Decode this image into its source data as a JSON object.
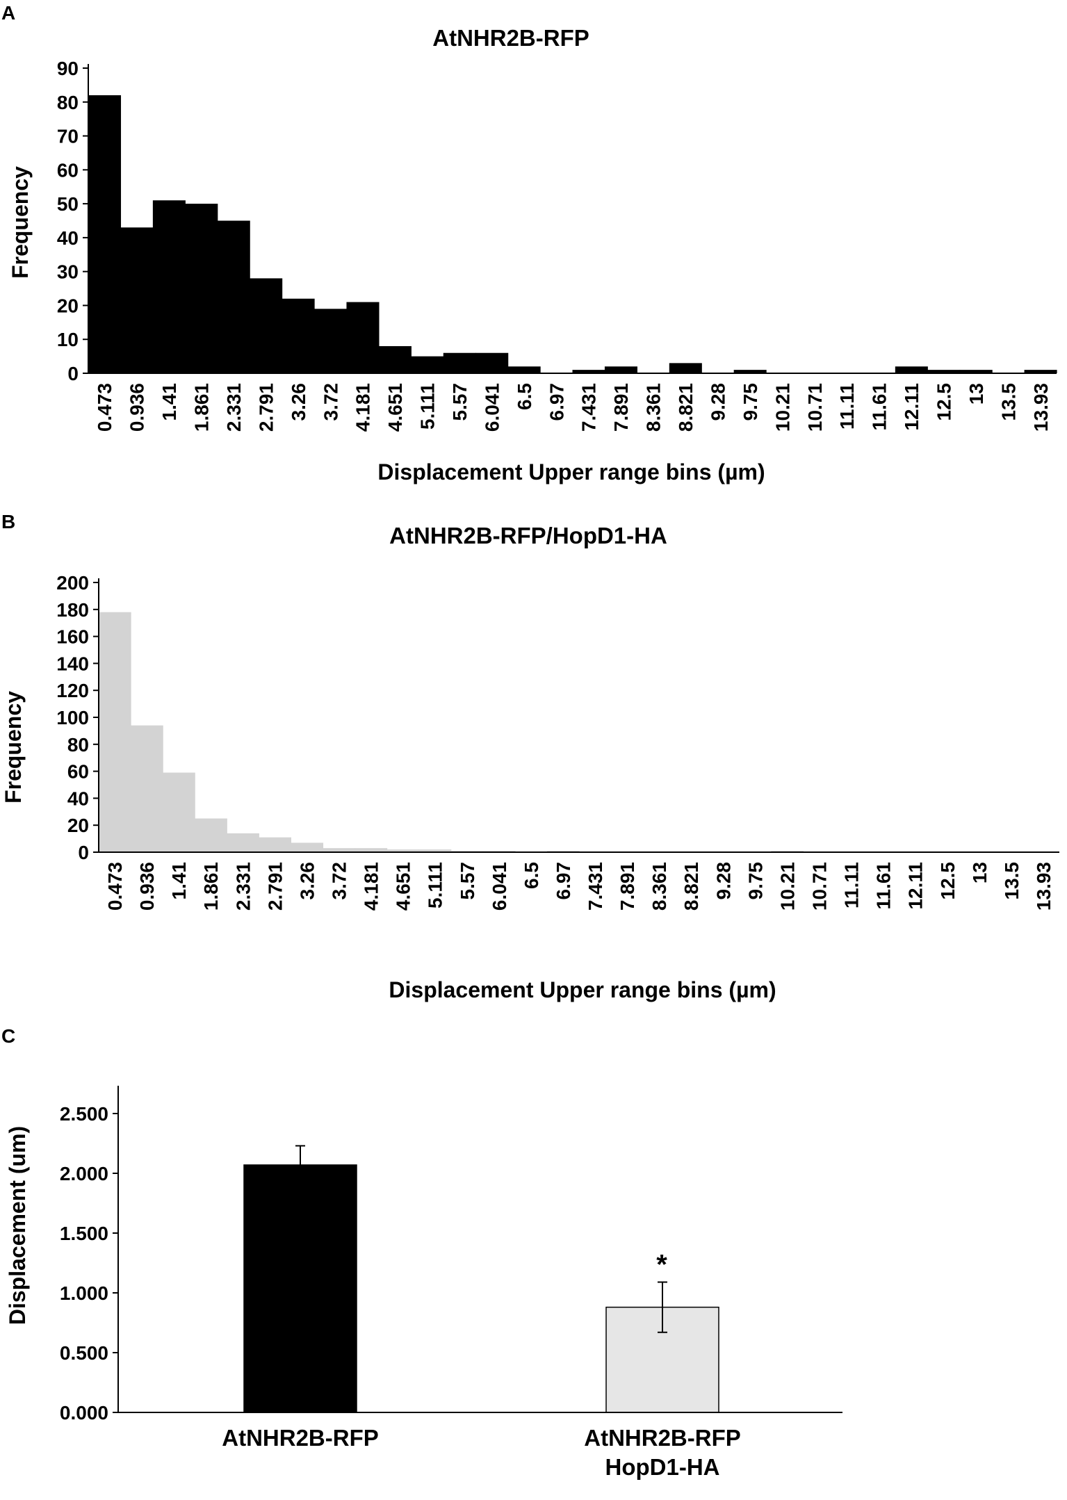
{
  "panels": {
    "a": {
      "letter": "A"
    },
    "b": {
      "letter": "B"
    },
    "c": {
      "letter": "C"
    }
  },
  "chart_data": [
    {
      "type": "bar",
      "title": "AtNHR2B-RFP",
      "xlabel": "Displacement Upper range bins (µm)",
      "ylabel": "Frequency",
      "ylim": [
        0,
        90
      ],
      "yticks": [
        0,
        10,
        20,
        30,
        40,
        50,
        60,
        70,
        80,
        90
      ],
      "color": "#000000",
      "categories": [
        "0.473",
        "0.936",
        "1.41",
        "1.861",
        "2.331",
        "2.791",
        "3.26",
        "3.72",
        "4.181",
        "4.651",
        "5.111",
        "5.57",
        "6.041",
        "6.5",
        "6.97",
        "7.431",
        "7.891",
        "8.361",
        "8.821",
        "9.28",
        "9.75",
        "10.21",
        "10.71",
        "11.11",
        "11.61",
        "12.11",
        "12.5",
        "13",
        "13.5",
        "13.93"
      ],
      "values": [
        82,
        43,
        51,
        50,
        45,
        28,
        22,
        19,
        21,
        8,
        5,
        6,
        6,
        2,
        0,
        1,
        2,
        0,
        3,
        0,
        1,
        0,
        0,
        0,
        0,
        2,
        1,
        1,
        0,
        1
      ],
      "grid": false,
      "legend": "none"
    },
    {
      "type": "bar",
      "title": "AtNHR2B-RFP/HopD1-HA",
      "xlabel": "Displacement Upper range bins (µm)",
      "ylabel": "Frequency",
      "ylim": [
        0,
        200
      ],
      "yticks": [
        0,
        20,
        40,
        60,
        80,
        100,
        120,
        140,
        160,
        180,
        200
      ],
      "color": "#d3d3d3",
      "categories": [
        "0.473",
        "0.936",
        "1.41",
        "1.861",
        "2.331",
        "2.791",
        "3.26",
        "3.72",
        "4.181",
        "4.651",
        "5.111",
        "5.57",
        "6.041",
        "6.5",
        "6.97",
        "7.431",
        "7.891",
        "8.361",
        "8.821",
        "9.28",
        "9.75",
        "10.21",
        "10.71",
        "11.11",
        "11.61",
        "12.11",
        "12.5",
        "13",
        "13.5",
        "13.93"
      ],
      "values": [
        178,
        94,
        59,
        25,
        14,
        11,
        7,
        3,
        3,
        2,
        2,
        1,
        1,
        0,
        1,
        0,
        0,
        0,
        0,
        0,
        0,
        1,
        0,
        0,
        0,
        0,
        0,
        0,
        0,
        0
      ],
      "grid": false,
      "legend": "none"
    },
    {
      "type": "bar",
      "title": "",
      "xlabel": "",
      "ylabel": "Displacement (um)",
      "ylim": [
        0,
        2.5
      ],
      "yticks": [
        "0.000",
        "0.500",
        "1.000",
        "1.500",
        "2.000",
        "2.500"
      ],
      "categories": [
        [
          "AtNHR2B-RFP"
        ],
        [
          "AtNHR2B-RFP",
          "HopD1-HA"
        ]
      ],
      "values": [
        2.07,
        0.88
      ],
      "errors": [
        0.16,
        0.21
      ],
      "colors": [
        "#000000",
        "#e6e6e6"
      ],
      "annotations": [
        "",
        "*"
      ],
      "grid": false,
      "legend": "none"
    }
  ]
}
